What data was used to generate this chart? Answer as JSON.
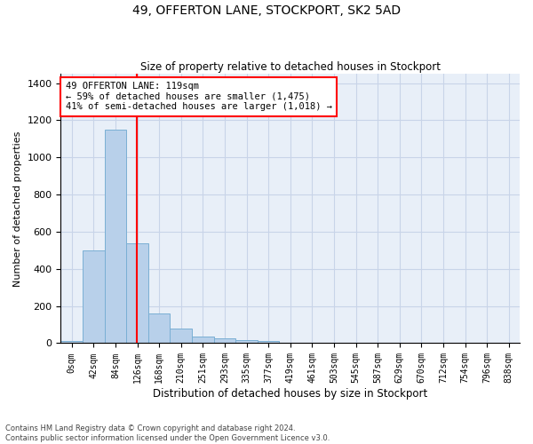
{
  "title": "49, OFFERTON LANE, STOCKPORT, SK2 5AD",
  "subtitle": "Size of property relative to detached houses in Stockport",
  "xlabel": "Distribution of detached houses by size in Stockport",
  "ylabel": "Number of detached properties",
  "footer_line1": "Contains HM Land Registry data © Crown copyright and database right 2024.",
  "footer_line2": "Contains public sector information licensed under the Open Government Licence v3.0.",
  "annotation_line1": "49 OFFERTON LANE: 119sqm",
  "annotation_line2": "← 59% of detached houses are smaller (1,475)",
  "annotation_line3": "41% of semi-detached houses are larger (1,018) →",
  "bar_values": [
    10,
    500,
    1150,
    540,
    160,
    80,
    35,
    28,
    18,
    10,
    0,
    0,
    0,
    0,
    0,
    0,
    0,
    0,
    0,
    0,
    0
  ],
  "bar_labels": [
    "0sqm",
    "42sqm",
    "84sqm",
    "126sqm",
    "168sqm",
    "210sqm",
    "251sqm",
    "293sqm",
    "335sqm",
    "377sqm",
    "419sqm",
    "461sqm",
    "503sqm",
    "545sqm",
    "587sqm",
    "629sqm",
    "670sqm",
    "712sqm",
    "754sqm",
    "796sqm",
    "838sqm"
  ],
  "bar_color": "#b8d0ea",
  "bar_edge_color": "#7aafd4",
  "grid_color": "#c8d4e8",
  "background_color": "#e8eff8",
  "vline_x": 2.97,
  "vline_color": "red",
  "ylim": [
    0,
    1450
  ],
  "yticks": [
    0,
    200,
    400,
    600,
    800,
    1000,
    1200,
    1400
  ],
  "figsize": [
    6.0,
    5.0
  ],
  "dpi": 100
}
